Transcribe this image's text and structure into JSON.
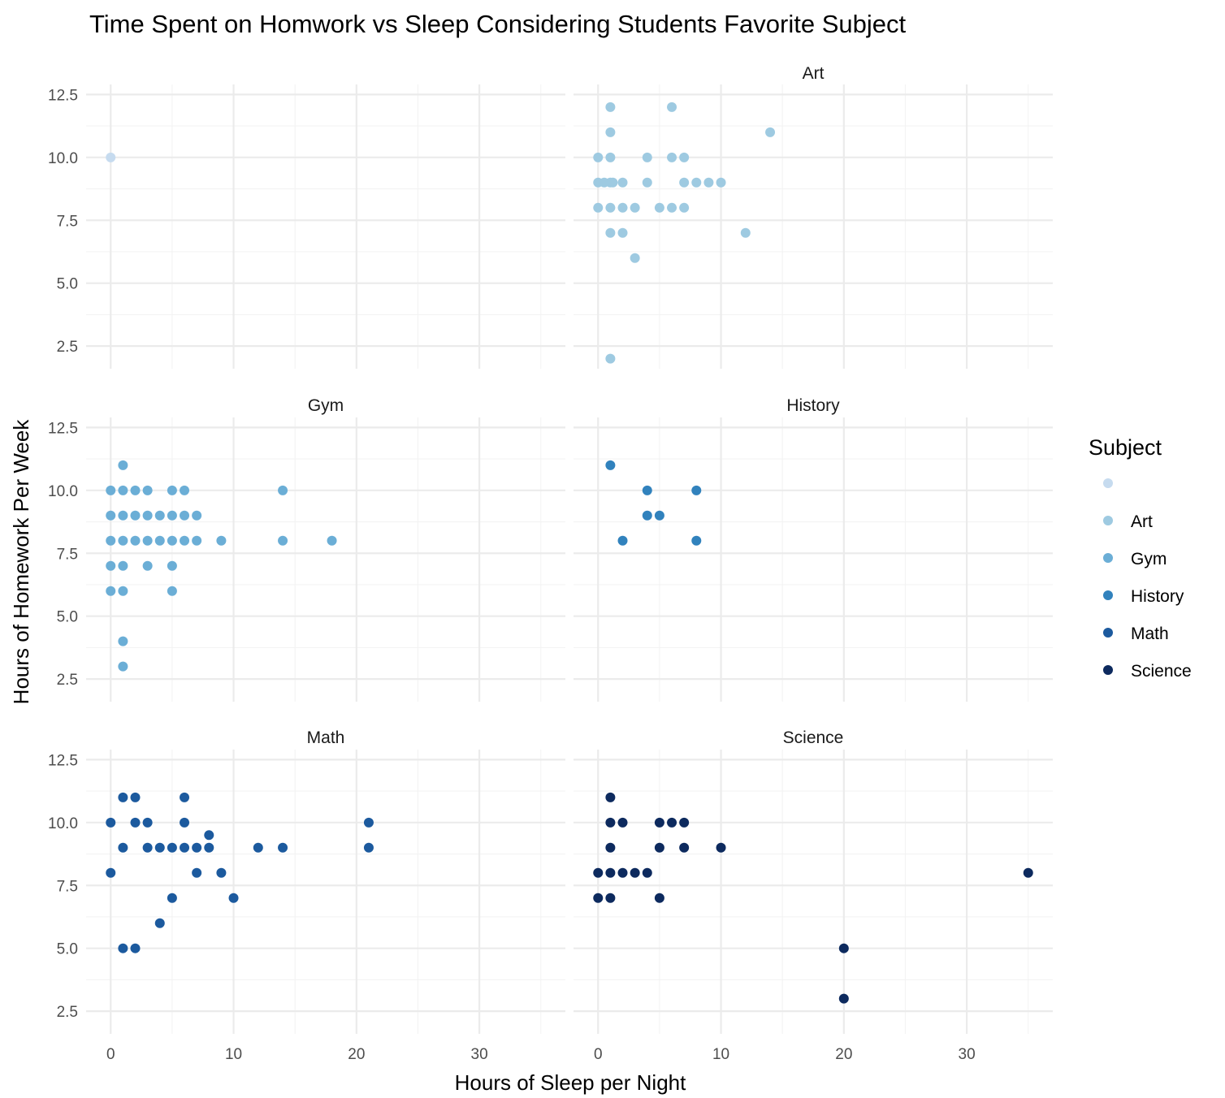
{
  "chart_data": {
    "type": "scatter",
    "title": "Time Spent on Homwork vs Sleep Considering Students Favorite Subject",
    "xlabel": "Hours of Sleep per Night",
    "ylabel": "Hours of Homework Per Week",
    "xlim": [
      -2,
      37
    ],
    "ylim": [
      1.6,
      12.9
    ],
    "x_ticks": [
      0,
      10,
      20,
      30
    ],
    "x_tick_labels": [
      "0",
      "10",
      "20",
      "30"
    ],
    "y_ticks": [
      2.5,
      5.0,
      7.5,
      10.0,
      12.5
    ],
    "y_tick_labels": [
      "2.5",
      "5.0",
      "7.5",
      "10.0",
      "12.5"
    ],
    "grid": true,
    "legend": {
      "title": "Subject",
      "position": "right",
      "entries": [
        {
          "label": "",
          "color": "#c6dbef"
        },
        {
          "label": "Art",
          "color": "#9ecae1"
        },
        {
          "label": "Gym",
          "color": "#6baed6"
        },
        {
          "label": "History",
          "color": "#3182bd"
        },
        {
          "label": "Math",
          "color": "#1c5a9e"
        },
        {
          "label": "Science",
          "color": "#0d2a5e"
        }
      ]
    },
    "facets": [
      {
        "strip": "",
        "color": "#c6dbef",
        "points": [
          [
            0,
            10
          ]
        ]
      },
      {
        "strip": "Art",
        "color": "#9ecae1",
        "points": [
          [
            1,
            12
          ],
          [
            6,
            12
          ],
          [
            1,
            11
          ],
          [
            14,
            11
          ],
          [
            0,
            10
          ],
          [
            1,
            10
          ],
          [
            4,
            10
          ],
          [
            6,
            10
          ],
          [
            7,
            10
          ],
          [
            0,
            9
          ],
          [
            0.5,
            9
          ],
          [
            1,
            9
          ],
          [
            1.2,
            9
          ],
          [
            2,
            9
          ],
          [
            4,
            9
          ],
          [
            7,
            9
          ],
          [
            8,
            9
          ],
          [
            9,
            9
          ],
          [
            10,
            9
          ],
          [
            0,
            8
          ],
          [
            1,
            8
          ],
          [
            2,
            8
          ],
          [
            3,
            8
          ],
          [
            5,
            8
          ],
          [
            6,
            8
          ],
          [
            7,
            8
          ],
          [
            1,
            7
          ],
          [
            2,
            7
          ],
          [
            12,
            7
          ],
          [
            3,
            6
          ],
          [
            1,
            2
          ]
        ]
      },
      {
        "strip": "Gym",
        "color": "#6baed6",
        "points": [
          [
            1,
            11
          ],
          [
            0,
            10
          ],
          [
            1,
            10
          ],
          [
            2,
            10
          ],
          [
            3,
            10
          ],
          [
            5,
            10
          ],
          [
            6,
            10
          ],
          [
            14,
            10
          ],
          [
            0,
            9
          ],
          [
            1,
            9
          ],
          [
            2,
            9
          ],
          [
            3,
            9
          ],
          [
            4,
            9
          ],
          [
            5,
            9
          ],
          [
            6,
            9
          ],
          [
            7,
            9
          ],
          [
            0,
            8
          ],
          [
            1,
            8
          ],
          [
            2,
            8
          ],
          [
            3,
            8
          ],
          [
            4,
            8
          ],
          [
            5,
            8
          ],
          [
            6,
            8
          ],
          [
            7,
            8
          ],
          [
            9,
            8
          ],
          [
            14,
            8
          ],
          [
            18,
            8
          ],
          [
            0,
            7
          ],
          [
            1,
            7
          ],
          [
            3,
            7
          ],
          [
            5,
            7
          ],
          [
            0,
            6
          ],
          [
            1,
            6
          ],
          [
            5,
            6
          ],
          [
            1,
            4
          ],
          [
            1,
            3
          ]
        ]
      },
      {
        "strip": "History",
        "color": "#3182bd",
        "points": [
          [
            1,
            11
          ],
          [
            4,
            10
          ],
          [
            8,
            10
          ],
          [
            4,
            9
          ],
          [
            5,
            9
          ],
          [
            2,
            8
          ],
          [
            8,
            8
          ]
        ]
      },
      {
        "strip": "Math",
        "color": "#1c5a9e",
        "points": [
          [
            1,
            11
          ],
          [
            2,
            11
          ],
          [
            6,
            11
          ],
          [
            0,
            10
          ],
          [
            2,
            10
          ],
          [
            3,
            10
          ],
          [
            6,
            10
          ],
          [
            21,
            10
          ],
          [
            8,
            9.5
          ],
          [
            1,
            9
          ],
          [
            3,
            9
          ],
          [
            4,
            9
          ],
          [
            5,
            9
          ],
          [
            6,
            9
          ],
          [
            7,
            9
          ],
          [
            8,
            9
          ],
          [
            12,
            9
          ],
          [
            14,
            9
          ],
          [
            21,
            9
          ],
          [
            0,
            8
          ],
          [
            7,
            8
          ],
          [
            9,
            8
          ],
          [
            5,
            7
          ],
          [
            10,
            7
          ],
          [
            4,
            6
          ],
          [
            1,
            5
          ],
          [
            2,
            5
          ]
        ]
      },
      {
        "strip": "Science",
        "color": "#0d2a5e",
        "points": [
          [
            1,
            11
          ],
          [
            1,
            10
          ],
          [
            2,
            10
          ],
          [
            5,
            10
          ],
          [
            6,
            10
          ],
          [
            7,
            10
          ],
          [
            1,
            9
          ],
          [
            5,
            9
          ],
          [
            7,
            9
          ],
          [
            10,
            9
          ],
          [
            0,
            8
          ],
          [
            1,
            8
          ],
          [
            2,
            8
          ],
          [
            3,
            8
          ],
          [
            4,
            8
          ],
          [
            35,
            8
          ],
          [
            0,
            7
          ],
          [
            1,
            7
          ],
          [
            5,
            7
          ],
          [
            20,
            5
          ],
          [
            20,
            3
          ]
        ]
      }
    ]
  }
}
